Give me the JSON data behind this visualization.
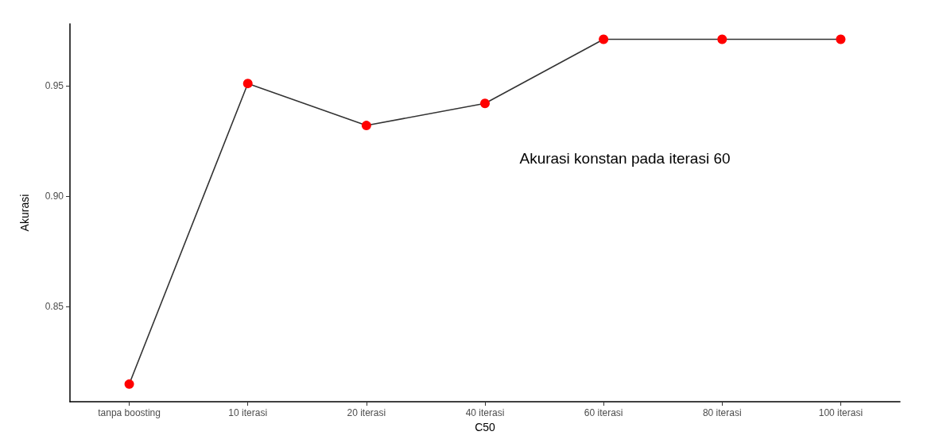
{
  "chart_data": {
    "type": "line",
    "xlabel": "C50",
    "ylabel": "Akurasi",
    "categories": [
      "tanpa boosting",
      "10 iterasi",
      "20 iterasi",
      "40 iterasi",
      "60 iterasi",
      "80 iterasi",
      "100 iterasi"
    ],
    "series": [
      {
        "color": "#ff0000",
        "values": [
          0.815,
          0.951,
          0.932,
          0.942,
          0.971,
          0.971,
          0.971
        ]
      }
    ],
    "ylim": [
      0.807,
      0.978
    ],
    "yticks": [
      {
        "value": 0.85,
        "label": "0.85"
      },
      {
        "value": 0.9,
        "label": "0.90"
      },
      {
        "value": 0.95,
        "label": "0.95"
      }
    ],
    "annotations": [
      "Akurasi konstan pada iterasi 60"
    ],
    "marker": "circle",
    "line_style": "solid",
    "grid": false
  }
}
